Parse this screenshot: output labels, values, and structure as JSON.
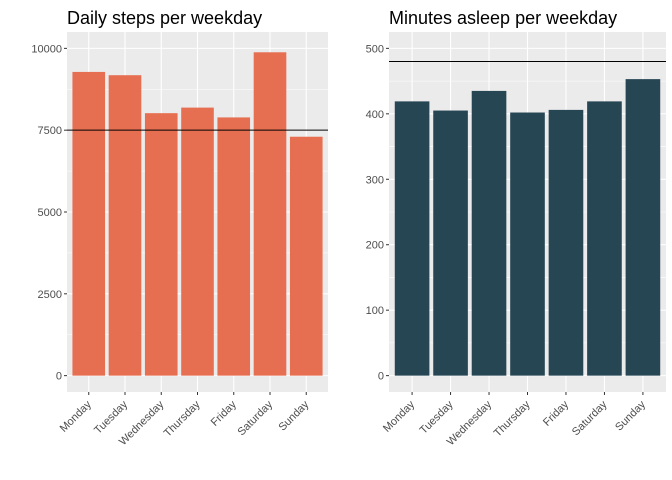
{
  "chart_data": [
    {
      "type": "bar",
      "title": "Daily steps per weekday",
      "xlabel": "",
      "ylabel": "",
      "categories": [
        "Monday",
        "Tuesday",
        "Wednesday",
        "Thursday",
        "Friday",
        "Saturday",
        "Sunday"
      ],
      "values": [
        9280,
        9180,
        8020,
        8190,
        7890,
        9880,
        7300
      ],
      "ylim": [
        0,
        10000
      ],
      "yticks": [
        "0",
        "2500",
        "5000",
        "7500",
        "10000"
      ],
      "reference_line": 7500,
      "bar_color": "#E76F51",
      "grid": true
    },
    {
      "type": "bar",
      "title": "Minutes asleep per weekday",
      "xlabel": "",
      "ylabel": "",
      "categories": [
        "Monday",
        "Tuesday",
        "Wednesday",
        "Thursday",
        "Friday",
        "Saturday",
        "Sunday"
      ],
      "values": [
        419,
        405,
        435,
        402,
        406,
        419,
        453
      ],
      "ylim": [
        0,
        500
      ],
      "yticks": [
        "0",
        "100",
        "200",
        "300",
        "400",
        "500"
      ],
      "reference_line": 480,
      "bar_color": "#264653",
      "grid": true
    }
  ],
  "style": {
    "panel_background": "#EBEBEB",
    "gridline_color": "#FFFFFF",
    "reference_line_color": "#000000"
  }
}
